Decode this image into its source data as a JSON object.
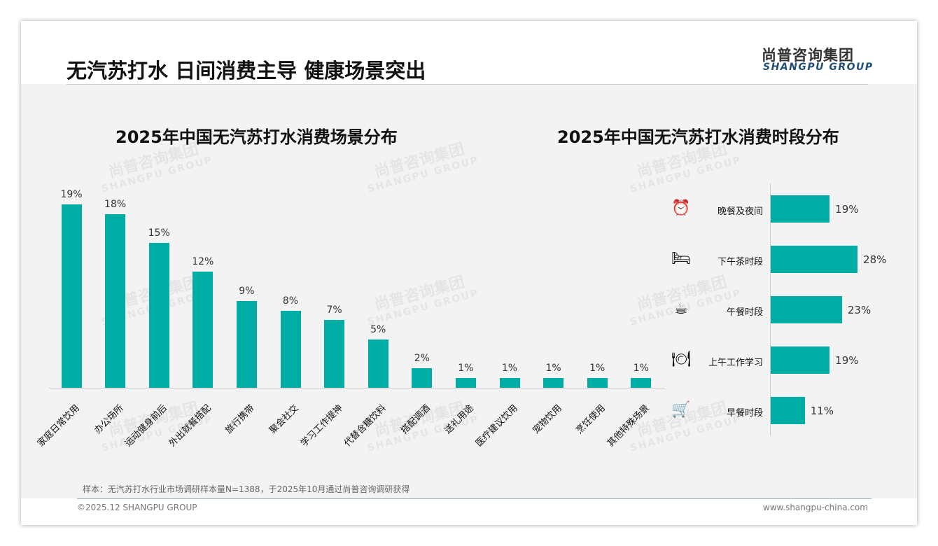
{
  "header": {
    "title": "无汽苏打水 日间消费主导 健康场景突出",
    "logo_cn": "尚普咨询集团",
    "logo_en": "SHANGPU GROUP"
  },
  "watermark": {
    "cn": "尚普咨询集团",
    "en": "SHANGPU GROUP"
  },
  "chart_data": [
    {
      "type": "bar",
      "title": "2025年中国无汽苏打水消费场景分布",
      "categories": [
        "家庭日常饮用",
        "办公场所",
        "运动健身前后",
        "外出就餐搭配",
        "旅行携带",
        "聚会社交",
        "学习工作提神",
        "代替含糖饮料",
        "搭配调酒",
        "送礼用途",
        "医疗建议饮用",
        "宠物饮用",
        "烹饪使用",
        "其他特殊场景"
      ],
      "values": [
        19,
        18,
        15,
        12,
        9,
        8,
        7,
        5,
        2,
        1,
        1,
        1,
        1,
        1
      ],
      "unit": "%",
      "ylim": [
        0,
        20
      ]
    },
    {
      "type": "bar",
      "orientation": "horizontal",
      "title": "2025年中国无汽苏打水消费时段分布",
      "categories": [
        "晚餐及夜间",
        "下午茶时段",
        "午餐时段",
        "上午工作学习",
        "早餐时段"
      ],
      "icons": [
        "alarm-clock-icon",
        "bed-icon",
        "coffee-mug-icon",
        "plate-cutlery-icon",
        "shopping-cart-icon"
      ],
      "values": [
        19,
        28,
        23,
        19,
        11
      ],
      "unit": "%",
      "xlim": [
        0,
        30
      ]
    }
  ],
  "colors": {
    "bar": "#00ada4"
  },
  "footer": {
    "note": "样本：无汽苏打水行业市场调研样本量N=1388，于2025年10月通过尚普咨询调研获得",
    "copyright": "©2025.12 SHANGPU GROUP",
    "website": "www.shangpu-china.com"
  }
}
